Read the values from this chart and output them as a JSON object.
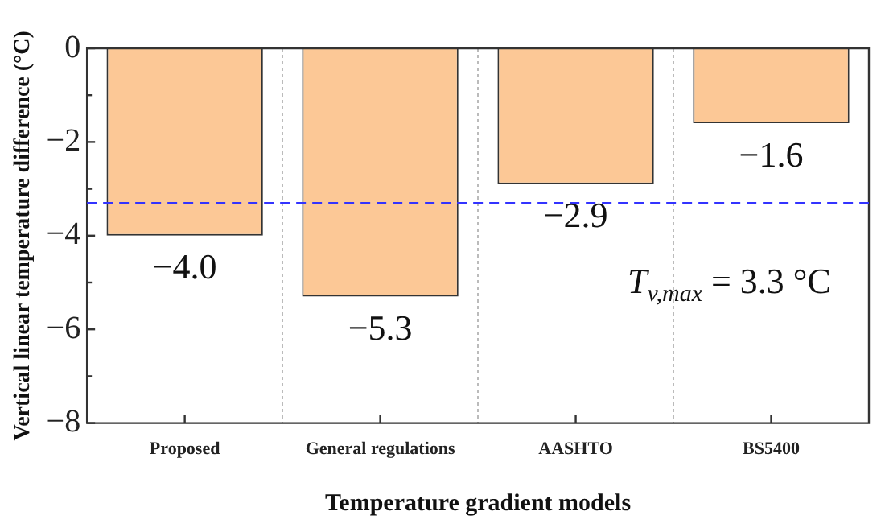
{
  "chart_data": {
    "type": "bar",
    "xlabel": "Temperature gradient models",
    "ylabel": "Vertical linear temperature difference (°C)",
    "categories": [
      "Proposed",
      "General regulations",
      "AASHTO",
      "BS5400"
    ],
    "values": [
      -4.0,
      -5.3,
      -2.9,
      -1.6
    ],
    "color": "#fcc896",
    "value_labels": [
      "−4.0",
      "−5.3",
      "−2.9",
      "−1.6"
    ],
    "ylim": [
      -8,
      0
    ],
    "yticks": [
      {
        "value": -8,
        "label": "−8"
      },
      {
        "value": -7,
        "label": null
      },
      {
        "value": -6,
        "label": "−6"
      },
      {
        "value": -5,
        "label": null
      },
      {
        "value": -4,
        "label": "−4"
      },
      {
        "value": -3,
        "label": null
      },
      {
        "value": -2,
        "label": "−2"
      },
      {
        "value": -1,
        "label": null
      },
      {
        "value": 0,
        "label": "0"
      }
    ],
    "ref_lines": [
      {
        "axis": "y",
        "value": -3.3,
        "color": "#3333ff",
        "line_style": "dashed"
      }
    ],
    "annotations": [
      "T$_{v,max}$ = 3.3 °C"
    ],
    "grid": "x"
  }
}
